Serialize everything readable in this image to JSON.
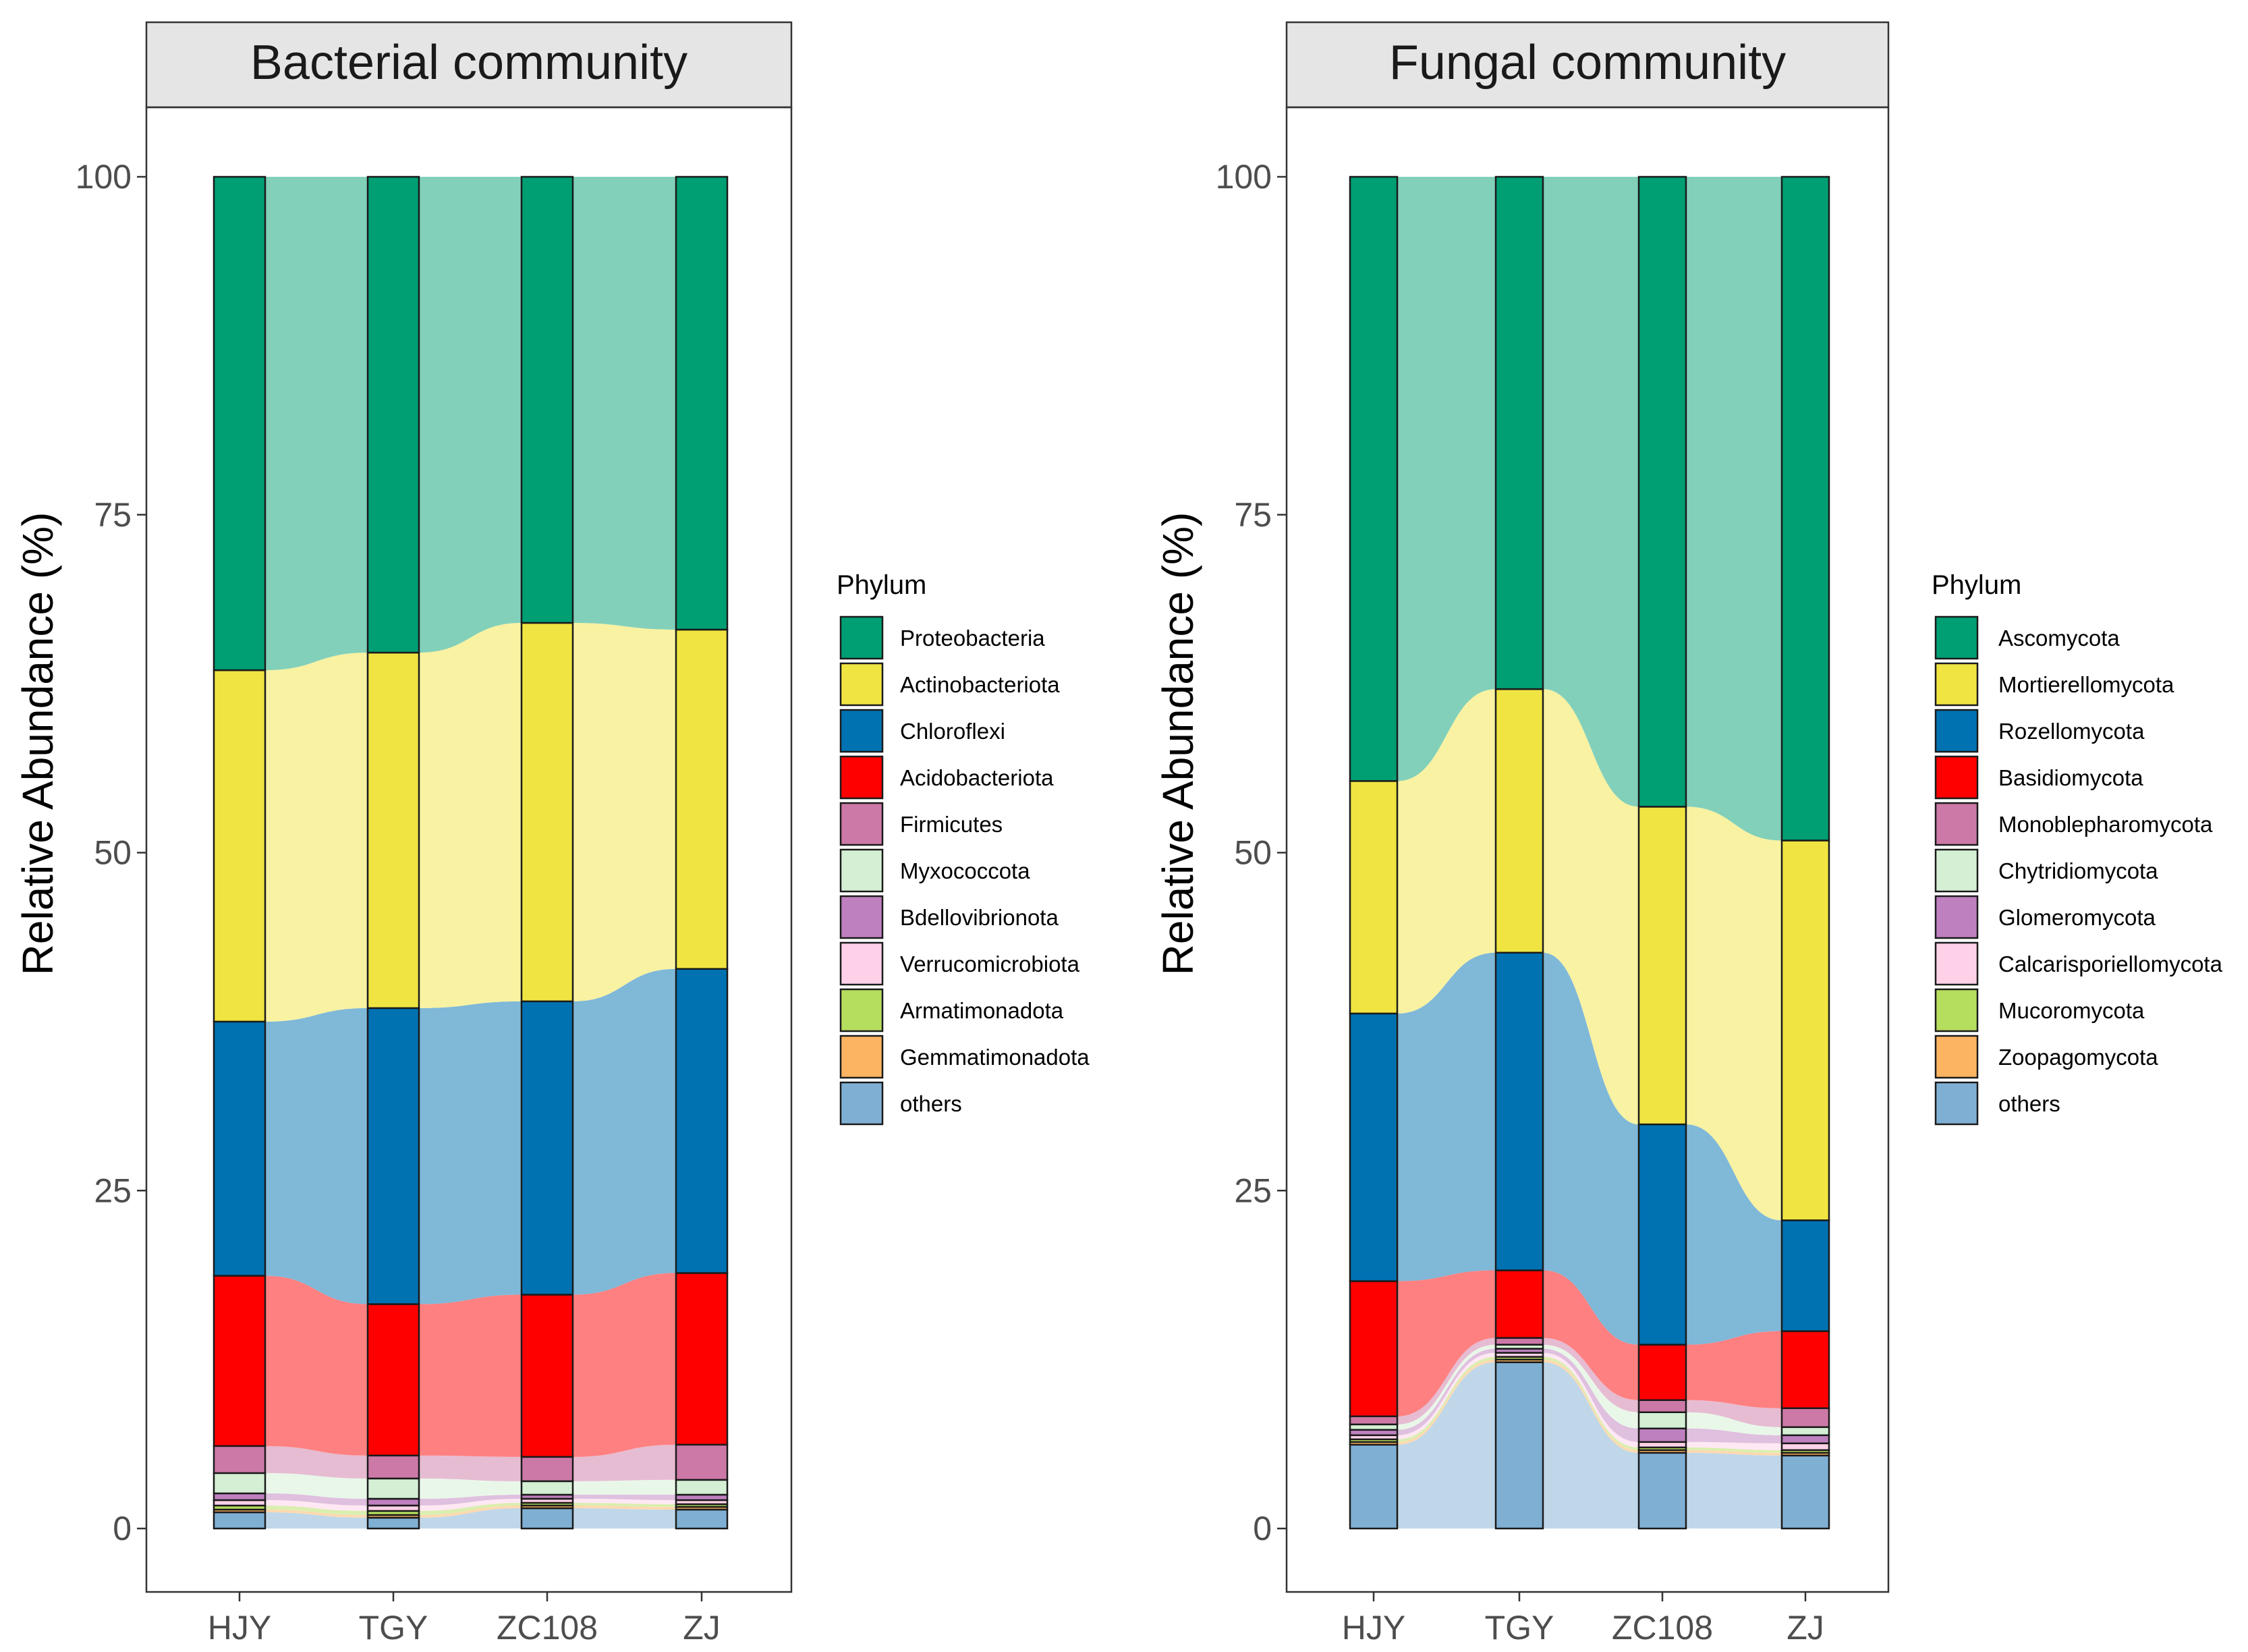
{
  "chart_data": [
    {
      "type": "bar",
      "title": "Bacterial community",
      "ylabel": "Relative Abundance (%)",
      "xlabel": "",
      "ylim": [
        -5,
        105
      ],
      "yticks": [
        0,
        25,
        50,
        75,
        100
      ],
      "categories": [
        "HJY",
        "TGY",
        "ZC108",
        "ZJ"
      ],
      "legend_title": "Phylum",
      "legend_position": "right",
      "stacking_order": "bottom-to-top: others first, Proteobacteria on top",
      "series": [
        {
          "name": "Proteobacteria",
          "color": "#009E73",
          "flow_color": "#82D0BA",
          "values": [
            36.5,
            35.2,
            33.0,
            33.5
          ]
        },
        {
          "name": "Actinobacteriota",
          "color": "#F0E442",
          "flow_color": "#F8F2A2",
          "values": [
            26.0,
            26.3,
            28.0,
            25.1
          ]
        },
        {
          "name": "Chloroflexi",
          "color": "#0072B2",
          "flow_color": "#80B8D8",
          "values": [
            18.8,
            21.9,
            21.7,
            22.5
          ]
        },
        {
          "name": "Acidobacteriota",
          "color": "#FF0000",
          "flow_color": "#FF8080",
          "values": [
            12.6,
            11.2,
            12.0,
            12.7
          ]
        },
        {
          "name": "Firmicutes",
          "color": "#CC79A7",
          "flow_color": "#E6BCD3",
          "values": [
            2.0,
            1.7,
            1.8,
            2.6
          ]
        },
        {
          "name": "Myxococcota",
          "color": "#D4EFD4",
          "flow_color": "#E9F7E9",
          "values": [
            1.5,
            1.5,
            1.0,
            1.1
          ]
        },
        {
          "name": "Bdellovibrionota",
          "color": "#BF80BF",
          "flow_color": "#DFC0DF",
          "values": [
            0.5,
            0.5,
            0.3,
            0.4
          ]
        },
        {
          "name": "Verrucomicrobiota",
          "color": "#FFD1E8",
          "flow_color": "#FFE8F3",
          "values": [
            0.4,
            0.4,
            0.3,
            0.3
          ]
        },
        {
          "name": "Armatimonadota",
          "color": "#B5DD5E",
          "flow_color": "#DAEEAF",
          "values": [
            0.3,
            0.3,
            0.2,
            0.2
          ]
        },
        {
          "name": "Gemmatimonadota",
          "color": "#FDB462",
          "flow_color": "#FED9B0",
          "values": [
            0.2,
            0.2,
            0.2,
            0.2
          ]
        },
        {
          "name": "others",
          "color": "#7FAFD3",
          "flow_color": "#BFD7E9",
          "values": [
            1.2,
            0.8,
            1.5,
            1.4
          ]
        }
      ]
    },
    {
      "type": "bar",
      "title": "Fungal community",
      "ylabel": "Relative Abundance (%)",
      "xlabel": "",
      "ylim": [
        -5,
        105
      ],
      "yticks": [
        0,
        25,
        50,
        75,
        100
      ],
      "categories": [
        "HJY",
        "TGY",
        "ZC108",
        "ZJ"
      ],
      "legend_title": "Phylum",
      "legend_position": "right",
      "stacking_order": "bottom-to-top: others first, Ascomycota on top",
      "series": [
        {
          "name": "Ascomycota",
          "color": "#009E73",
          "flow_color": "#82D0BA",
          "values": [
            44.7,
            37.9,
            46.6,
            49.1
          ]
        },
        {
          "name": "Mortierellomycota",
          "color": "#F0E442",
          "flow_color": "#F8F2A2",
          "values": [
            17.2,
            19.5,
            23.5,
            28.1
          ]
        },
        {
          "name": "Rozellomycota",
          "color": "#0072B2",
          "flow_color": "#80B8D8",
          "values": [
            19.8,
            23.5,
            16.3,
            8.2
          ]
        },
        {
          "name": "Basidiomycota",
          "color": "#FF0000",
          "flow_color": "#FF8080",
          "values": [
            10.0,
            5.0,
            4.1,
            5.7
          ]
        },
        {
          "name": "Monoblepharomycota",
          "color": "#CC79A7",
          "flow_color": "#E6BCD3",
          "values": [
            0.6,
            0.5,
            0.9,
            1.4
          ]
        },
        {
          "name": "Chytridiomycota",
          "color": "#D4EFD4",
          "flow_color": "#E9F7E9",
          "values": [
            0.4,
            0.3,
            1.2,
            0.6
          ]
        },
        {
          "name": "Glomeromycota",
          "color": "#BF80BF",
          "flow_color": "#DFC0DF",
          "values": [
            0.4,
            0.3,
            1.0,
            0.6
          ]
        },
        {
          "name": "Calcarisporiellomycota",
          "color": "#FFD1E8",
          "flow_color": "#FFE8F3",
          "values": [
            0.3,
            0.3,
            0.4,
            0.5
          ]
        },
        {
          "name": "Mucoromycota",
          "color": "#B5DD5E",
          "flow_color": "#DAEEAF",
          "values": [
            0.2,
            0.2,
            0.2,
            0.2
          ]
        },
        {
          "name": "Zoopagomycota",
          "color": "#FDB462",
          "flow_color": "#FED9B0",
          "values": [
            0.2,
            0.2,
            0.2,
            0.2
          ]
        },
        {
          "name": "others",
          "color": "#7FAFD3",
          "flow_color": "#BFD7E9",
          "values": [
            6.2,
            12.3,
            5.6,
            5.4
          ]
        }
      ]
    }
  ]
}
